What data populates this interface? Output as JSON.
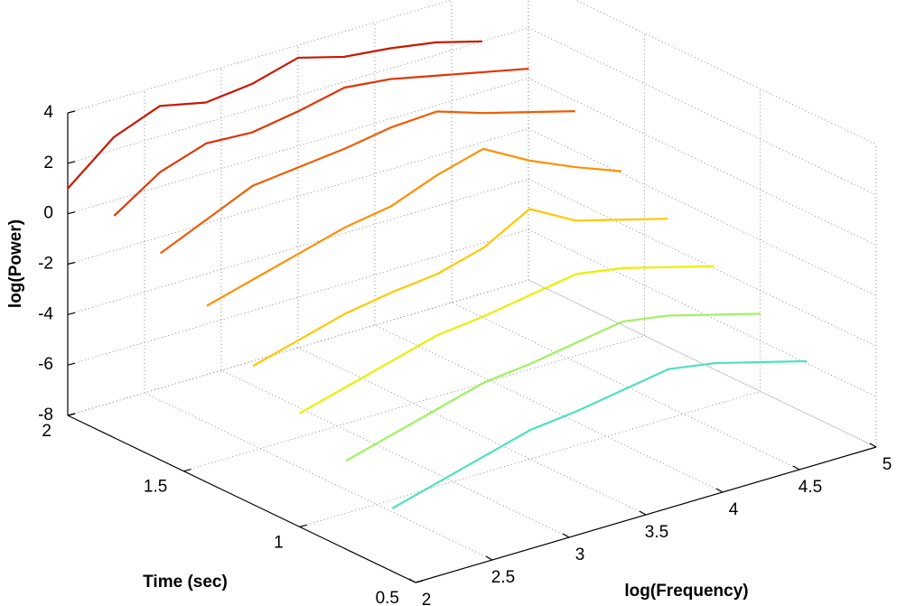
{
  "chart_data": {
    "type": "waterfall3d",
    "xlabel": "log(Frequency)",
    "ylabel": "Time (sec)",
    "zlabel": "log(Power)",
    "xlim": [
      2,
      5
    ],
    "ylim": [
      0.5,
      2
    ],
    "zlim": [
      -8,
      4
    ],
    "xticks": [
      2,
      2.5,
      3,
      3.5,
      4,
      4.5,
      5
    ],
    "yticks": [
      0.5,
      1,
      1.5,
      2
    ],
    "zticks": [
      -8,
      -6,
      -4,
      -2,
      0,
      2,
      4
    ],
    "grid": true,
    "x": [
      2.0,
      2.3,
      2.6,
      2.9,
      3.2,
      3.5,
      3.8,
      4.1,
      4.4,
      4.7
    ],
    "series": [
      {
        "time": 2.0,
        "color": "#c81800",
        "values": [
          1.0,
          2.5,
          3.2,
          2.8,
          3.0,
          3.5,
          3.0,
          2.8,
          2.5,
          2.0
        ]
      },
      {
        "time": 1.8,
        "color": "#e03400",
        "values": [
          0.8,
          2.0,
          2.6,
          2.5,
          2.8,
          3.2,
          3.0,
          2.6,
          2.2,
          1.8
        ]
      },
      {
        "time": 1.6,
        "color": "#f05c00",
        "values": [
          0.2,
          1.0,
          1.8,
          2.0,
          2.2,
          2.5,
          2.6,
          2.0,
          1.5,
          1.0
        ]
      },
      {
        "time": 1.4,
        "color": "#ff9000",
        "values": [
          -1.0,
          -0.5,
          0.0,
          0.5,
          0.8,
          1.5,
          2.0,
          1.0,
          0.2,
          -0.5
        ]
      },
      {
        "time": 1.2,
        "color": "#ffc800",
        "values": [
          -2.5,
          -2.0,
          -1.5,
          -1.2,
          -1.0,
          -0.5,
          0.5,
          -0.5,
          -1.0,
          -1.5
        ]
      },
      {
        "time": 1.0,
        "color": "#e8f000",
        "values": [
          -3.5,
          -3.0,
          -2.5,
          -2.0,
          -1.8,
          -1.5,
          -1.2,
          -1.5,
          -2.0,
          -2.5
        ]
      },
      {
        "time": 0.8,
        "color": "#a0f060",
        "values": [
          -4.5,
          -4.0,
          -3.5,
          -3.0,
          -2.8,
          -2.5,
          -2.2,
          -2.5,
          -3.0,
          -3.5
        ]
      },
      {
        "time": 0.6,
        "color": "#50e0c0",
        "values": [
          -5.5,
          -5.0,
          -4.5,
          -4.0,
          -3.8,
          -3.5,
          -3.2,
          -3.5,
          -4.0,
          -4.5
        ]
      }
    ]
  }
}
